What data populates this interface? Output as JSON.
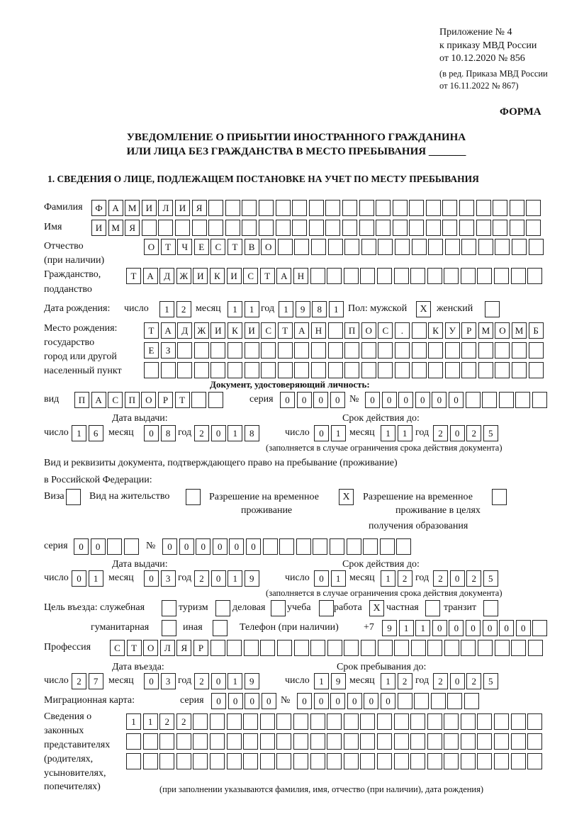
{
  "header": {
    "appendix": "Приложение № 4",
    "order": "к приказу МВД России",
    "date": "от 10.12.2020 № 856",
    "edition1": "(в ред. Приказа МВД России",
    "edition2": "от 16.11.2022 № 867)",
    "form": "ФОРМА",
    "title1": "УВЕДОМЛЕНИЕ О ПРИБЫТИИ ИНОСТРАННОГО ГРАЖДАНИНА",
    "title2": "ИЛИ ЛИЦА БЕЗ ГРАЖДАНСТВА В МЕСТО ПРЕБЫВАНИЯ _______",
    "section1": "1. СВЕДЕНИЯ О ЛИЦЕ, ПОДЛЕЖАЩЕМ ПОСТАНОВКЕ НА УЧЕТ ПО МЕСТУ ПРЕБЫВАНИЯ"
  },
  "labels": {
    "surname": "Фамилия",
    "name": "Имя",
    "patronymic": "Отчество",
    "patronymic2": "(при наличии)",
    "citizenship": "Гражданство,",
    "citizenship2": "подданство",
    "birth_date": "Дата рождения:",
    "day": "число",
    "month": "месяц",
    "year": "год",
    "sex": "Пол: мужской",
    "female": "женский",
    "birth_place": "Место рождения:",
    "bp2": "государство",
    "bp3": "город или другой",
    "bp4": "населенный пункт",
    "id_doc": "Документ, удостоверяющий личность:",
    "kind": "вид",
    "series": "серия",
    "number": "№",
    "issue_date": "Дата выдачи:",
    "valid_until": "Срок действия до:",
    "valid_note": "(заполняется в случае ограничения срока действия документа)",
    "right_doc1": "Вид и реквизиты документа, подтверждающего право на пребывание (проживание)",
    "right_doc2": "в Российской Федерации:",
    "visa": "Виза",
    "residence": "Вид на жительство",
    "temp1": "Разрешение на временное",
    "temp2": "проживание",
    "edu1": "Разрешение на временное",
    "edu2": "проживание в целях",
    "edu3": "получения образования",
    "purpose": "Цель въезда: служебная",
    "tourism": "туризм",
    "business": "деловая",
    "study": "учеба",
    "work": "работа",
    "private": "частная",
    "transit": "транзит",
    "humanitarian": "гуманитарная",
    "other": "иная",
    "phone": "Телефон (при наличии)",
    "phone_prefix": "+7",
    "profession": "Профессия",
    "entry_date": "Дата въезда:",
    "stay_until": "Срок пребывания до:",
    "migration_card": "Миграционная карта:",
    "reps1": "Сведения о",
    "reps2": "законных",
    "reps3": "представителях",
    "reps4": "(родителях,",
    "reps5": "усыновителях,",
    "reps6": "попечителях)",
    "reps_note": "(при заполнении указываются фамилия, имя, отчество (при наличии), дата рождения)"
  },
  "values": {
    "surname": "ФАМИЛИЯ",
    "name": "ИМЯ",
    "patronymic": "ОТЧЕСТВО",
    "citizenship": "ТАДЖИКИСТАН",
    "birth_day": "12",
    "birth_month": "11",
    "birth_year": "1981",
    "sex_male": "X",
    "sex_female": "",
    "birth_place_1": "ТАДЖИКИСТАН ПОС. КУРМОМБ",
    "birth_place_2": "ЕЗ",
    "birth_place_3": "",
    "id_kind": "ПАСПОРТ",
    "id_series": "0000",
    "id_number": "000000",
    "id_issue_day": "16",
    "id_issue_month": "08",
    "id_issue_year": "2018",
    "id_valid_day": "01",
    "id_valid_month": "11",
    "id_valid_year": "2025",
    "visa": "",
    "residence": "",
    "temp_residence": "X",
    "temp_residence_edu": "",
    "rd_series": "00",
    "rd_number": "000000",
    "rd_issue_day": "01",
    "rd_issue_month": "03",
    "rd_issue_year": "2019",
    "rd_valid_day": "01",
    "rd_valid_month": "12",
    "rd_valid_year": "2025",
    "purpose_official": "",
    "purpose_tourism": "",
    "purpose_business": "",
    "purpose_study": "",
    "purpose_work": "X",
    "purpose_private": "",
    "purpose_transit": "",
    "purpose_humanitarian": "",
    "purpose_other": "",
    "phone": "911000000",
    "profession": "СТОЛЯР",
    "entry_day": "27",
    "entry_month": "03",
    "entry_year": "2019",
    "stay_day": "19",
    "stay_month": "12",
    "stay_year": "2025",
    "mc_series": "0000",
    "mc_number": "000000",
    "reps_1": "1122",
    "reps_2": "",
    "reps_3": ""
  }
}
